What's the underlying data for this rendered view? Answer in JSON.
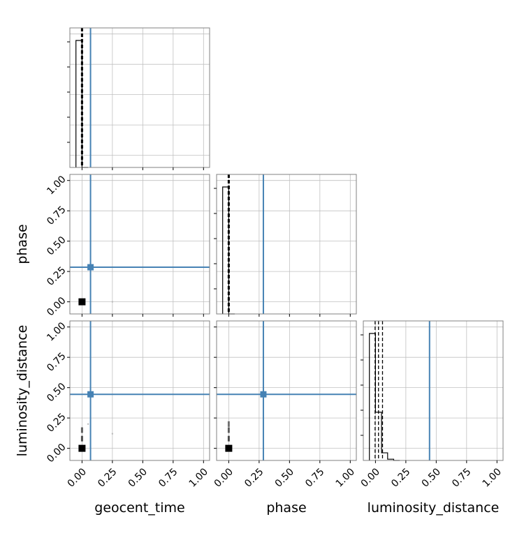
{
  "chart_data": {
    "type": "corner",
    "parameters": [
      "geocent_time",
      "phase",
      "luminosity_distance"
    ],
    "axis_range": [
      -0.1,
      1.05
    ],
    "ticks": [
      0.0,
      0.25,
      0.5,
      0.75,
      1.0
    ],
    "tick_labels": [
      "0.00",
      "0.25",
      "0.50",
      "0.75",
      "1.00"
    ],
    "grid": true,
    "colors": {
      "truth": "#4682b4",
      "samples": "#000000",
      "grid": "#c0c0c0",
      "frame": "#808080"
    },
    "truth_values": {
      "geocent_time": 0.07,
      "phase": 0.285,
      "luminosity_distance": 0.445
    },
    "quantile_lines": {
      "geocent_time": [
        -0.005,
        0.0,
        0.005
      ],
      "phase": [
        -0.005,
        0.0,
        0.005
      ],
      "luminosity_distance": [
        -0.003,
        0.025,
        0.058
      ]
    },
    "histograms": {
      "geocent_time": {
        "edges": [
          -0.05,
          0.0,
          0.05
        ],
        "heights": [
          1.0,
          0.0
        ]
      },
      "phase": {
        "edges": [
          -0.05,
          0.0,
          0.05
        ],
        "heights": [
          1.0,
          0.0
        ]
      },
      "luminosity_distance": {
        "edges": [
          -0.05,
          0.0,
          0.05,
          0.1,
          0.15,
          0.2
        ],
        "heights": [
          1.0,
          0.38,
          0.06,
          0.01,
          0.0
        ]
      }
    },
    "samples_2d": {
      "phase_vs_geocent_time": [
        [
          0.0,
          0.0
        ],
        [
          0.01,
          0.0
        ],
        [
          0.25,
          0.0
        ]
      ],
      "luminosity_distance_vs_geocent_time": [
        [
          0.0,
          0.0
        ],
        [
          0.0,
          0.08
        ],
        [
          0.0,
          0.15
        ],
        [
          0.05,
          0.2
        ],
        [
          0.25,
          0.12
        ]
      ],
      "luminosity_distance_vs_phase": [
        [
          0.0,
          0.0
        ],
        [
          0.0,
          0.08
        ],
        [
          0.0,
          0.15
        ],
        [
          0.0,
          0.2
        ]
      ]
    }
  }
}
